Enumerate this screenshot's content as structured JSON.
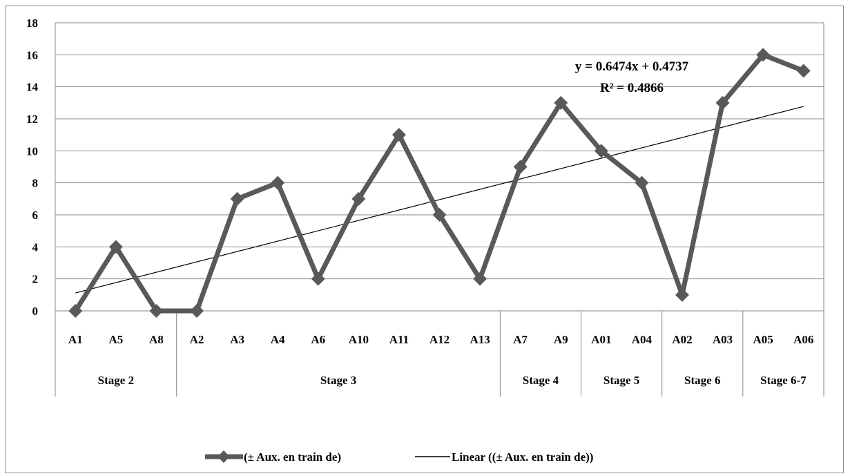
{
  "chart_data": {
    "type": "line",
    "categories": [
      "A1",
      "A5",
      "A8",
      "A2",
      "A3",
      "A4",
      "A6",
      "A10",
      "A11",
      "A12",
      "A13",
      "A7",
      "A9",
      "A01",
      "A04",
      "A02",
      "A03",
      "A05",
      "A06"
    ],
    "groups": [
      {
        "label": "Stage 2",
        "count": 3
      },
      {
        "label": "Stage 3",
        "count": 8
      },
      {
        "label": "Stage 4",
        "count": 2
      },
      {
        "label": "Stage 5",
        "count": 2
      },
      {
        "label": "Stage 6",
        "count": 2
      },
      {
        "label": "Stage 6-7",
        "count": 2
      }
    ],
    "series": [
      {
        "name": "(± Aux. en train de)",
        "values": [
          0,
          4,
          0,
          0,
          7,
          8,
          2,
          7,
          11,
          6,
          2,
          9,
          13,
          10,
          8,
          1,
          13,
          16,
          15
        ],
        "color": "#595959"
      }
    ],
    "trendline": {
      "name": "Linear ((± Aux. en train de))",
      "slope": 0.6474,
      "intercept": 0.4737,
      "equation": "y = 0.6474x + 0.4737",
      "r2": "R² = 0.4866",
      "color": "#000000"
    },
    "ylim": [
      0,
      18
    ],
    "yticks": [
      0,
      2,
      4,
      6,
      8,
      10,
      12,
      14,
      16,
      18
    ],
    "grid": true,
    "legend_position": "bottom"
  }
}
